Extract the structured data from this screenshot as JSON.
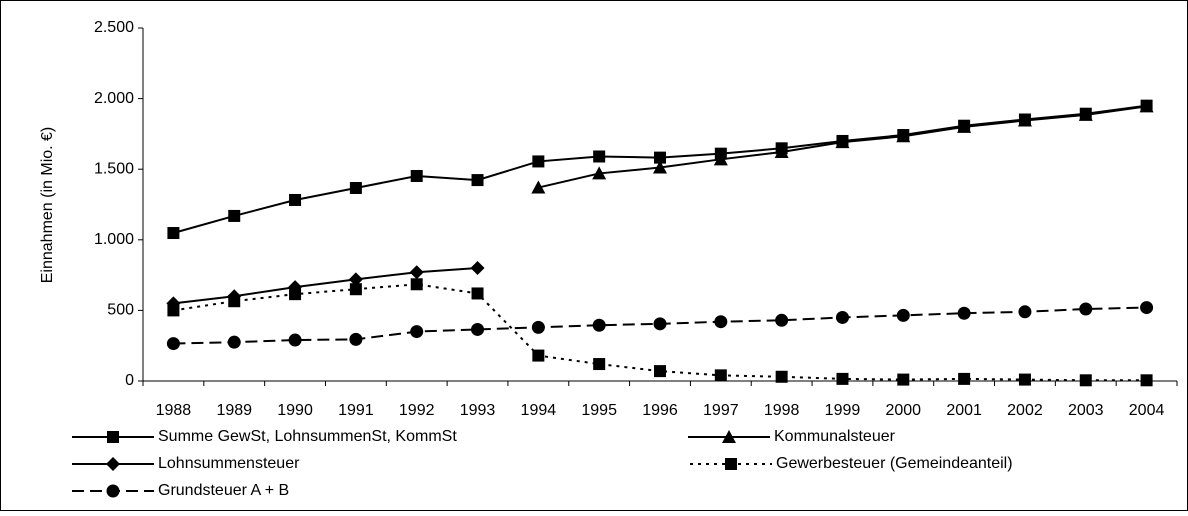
{
  "chart_data": {
    "type": "line",
    "y_label": "Einnahmen (in Mio. €)",
    "categories": [
      "1988",
      "1989",
      "1990",
      "1991",
      "1992",
      "1993",
      "1994",
      "1995",
      "1996",
      "1997",
      "1998",
      "1999",
      "2000",
      "2001",
      "2002",
      "2003",
      "2004"
    ],
    "ylim": [
      0,
      2500
    ],
    "yticks": [
      0,
      500,
      {
        "value": 1000,
        "label": "1.000"
      },
      {
        "value": 1500,
        "label": "1.500"
      },
      {
        "value": 2000,
        "label": "2.000"
      },
      {
        "value": 2500,
        "label": "2.500"
      }
    ],
    "grid": false,
    "legend": "bottom",
    "series": [
      {
        "name": "Summe GewSt, LohnsummenSt, KommSt",
        "color": "#000000",
        "marker": "square",
        "dash": "solid",
        "values": [
          1048,
          1169,
          1282,
          1367,
          1452,
          1423,
          1555,
          1590,
          1582,
          1610,
          1648,
          1700,
          1742,
          1808,
          1852,
          1893,
          1950
        ]
      },
      {
        "name": "Kommunalsteuer",
        "color": "#000000",
        "marker": "triangle",
        "dash": "solid",
        "values": [
          null,
          null,
          null,
          null,
          null,
          null,
          1370,
          1470,
          1512,
          1570,
          1622,
          1692,
          1733,
          1800,
          1845,
          1885,
          1945
        ]
      },
      {
        "name": "Lohnsummensteuer",
        "color": "#000000",
        "marker": "diamond",
        "dash": "solid",
        "values": [
          550,
          600,
          665,
          720,
          770,
          800,
          null,
          null,
          null,
          null,
          null,
          null,
          null,
          null,
          null,
          null,
          null
        ]
      },
      {
        "name": "Gewerbesteuer (Gemeindeanteil)",
        "color": "#000000",
        "marker": "square",
        "dash": "dotted",
        "values": [
          500,
          565,
          615,
          650,
          685,
          620,
          180,
          120,
          70,
          40,
          30,
          15,
          10,
          15,
          10,
          5,
          5
        ]
      },
      {
        "name": "Grundsteuer A + B",
        "color": "#000000",
        "marker": "circle",
        "dash": "dashed",
        "values": [
          265,
          275,
          290,
          295,
          350,
          365,
          380,
          395,
          405,
          420,
          430,
          450,
          465,
          480,
          490,
          510,
          520
        ]
      }
    ]
  }
}
